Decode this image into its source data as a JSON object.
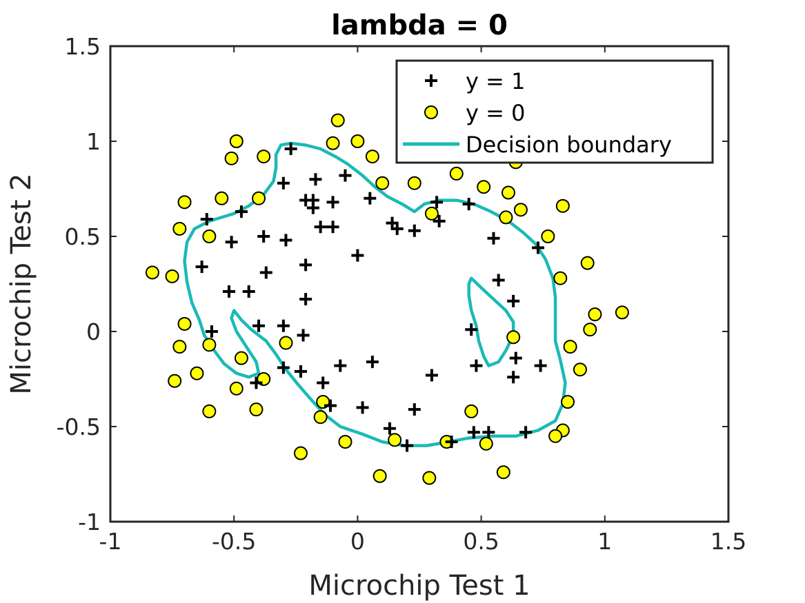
{
  "chart_data": {
    "type": "scatter",
    "title": "lambda = 0",
    "xlabel": "Microchip Test 1",
    "ylabel": "Microchip Test 2",
    "xlim": [
      -1,
      1.5
    ],
    "ylim": [
      -1,
      1.5
    ],
    "xticks": [
      -1,
      -0.5,
      0,
      0.5,
      1,
      1.5
    ],
    "xtick_labels": [
      "-1",
      "-0.5",
      "0",
      "0.5",
      "1",
      "1.5"
    ],
    "yticks": [
      -1,
      -0.5,
      0,
      0.5,
      1,
      1.5
    ],
    "ytick_labels": [
      "-1",
      "-0.5",
      "0",
      "0.5",
      "1",
      "1.5"
    ],
    "grid": false,
    "legend_position": "top-right",
    "colors": {
      "positive": "#000000",
      "negative_fill": "#ffff00",
      "boundary": "#1abab6"
    },
    "series": [
      {
        "name": "y = 1",
        "marker": "plus",
        "points": [
          [
            -0.27,
            0.96
          ],
          [
            -0.3,
            0.78
          ],
          [
            -0.17,
            0.8
          ],
          [
            -0.05,
            0.82
          ],
          [
            -0.21,
            0.69
          ],
          [
            -0.18,
            0.69
          ],
          [
            -0.18,
            0.65
          ],
          [
            -0.1,
            0.68
          ],
          [
            0.05,
            0.7
          ],
          [
            -0.15,
            0.55
          ],
          [
            -0.1,
            0.55
          ],
          [
            -0.61,
            0.59
          ],
          [
            -0.47,
            0.63
          ],
          [
            -0.51,
            0.47
          ],
          [
            -0.38,
            0.5
          ],
          [
            -0.29,
            0.48
          ],
          [
            -0.63,
            0.34
          ],
          [
            -0.37,
            0.31
          ],
          [
            -0.21,
            0.35
          ],
          [
            0.0,
            0.4
          ],
          [
            -0.52,
            0.21
          ],
          [
            -0.44,
            0.21
          ],
          [
            -0.21,
            0.17
          ],
          [
            -0.59,
            0.0
          ],
          [
            -0.4,
            0.03
          ],
          [
            -0.3,
            0.03
          ],
          [
            -0.22,
            -0.02
          ],
          [
            0.14,
            0.57
          ],
          [
            0.16,
            0.54
          ],
          [
            0.23,
            0.53
          ],
          [
            0.32,
            0.68
          ],
          [
            0.33,
            0.58
          ],
          [
            0.45,
            0.67
          ],
          [
            0.55,
            0.49
          ],
          [
            0.73,
            0.44
          ],
          [
            0.57,
            0.27
          ],
          [
            0.63,
            0.16
          ],
          [
            0.46,
            0.01
          ],
          [
            0.48,
            -0.18
          ],
          [
            0.64,
            -0.14
          ],
          [
            0.63,
            -0.24
          ],
          [
            0.74,
            -0.18
          ],
          [
            0.3,
            -0.23
          ],
          [
            0.23,
            -0.41
          ],
          [
            0.06,
            -0.16
          ],
          [
            -0.07,
            -0.18
          ],
          [
            -0.3,
            -0.19
          ],
          [
            -0.23,
            -0.21
          ],
          [
            -0.14,
            -0.27
          ],
          [
            -0.41,
            -0.27
          ],
          [
            -0.11,
            -0.39
          ],
          [
            0.02,
            -0.4
          ],
          [
            0.13,
            -0.51
          ],
          [
            0.2,
            -0.6
          ],
          [
            0.38,
            -0.58
          ],
          [
            0.47,
            -0.53
          ],
          [
            0.53,
            -0.53
          ],
          [
            0.68,
            -0.53
          ]
        ]
      },
      {
        "name": "y = 0",
        "marker": "circle",
        "points": [
          [
            -0.49,
            1.0
          ],
          [
            -0.51,
            0.91
          ],
          [
            -0.38,
            0.92
          ],
          [
            -0.1,
            0.99
          ],
          [
            0.0,
            1.0
          ],
          [
            -0.08,
            1.11
          ],
          [
            0.06,
            0.92
          ],
          [
            0.1,
            0.78
          ],
          [
            0.23,
            0.78
          ],
          [
            0.4,
            0.83
          ],
          [
            0.51,
            0.76
          ],
          [
            0.61,
            0.73
          ],
          [
            0.64,
            0.89
          ],
          [
            0.83,
            0.66
          ],
          [
            0.66,
            0.64
          ],
          [
            0.6,
            0.6
          ],
          [
            0.3,
            0.62
          ],
          [
            0.77,
            0.5
          ],
          [
            0.82,
            0.28
          ],
          [
            0.93,
            0.36
          ],
          [
            0.96,
            0.09
          ],
          [
            0.94,
            0.01
          ],
          [
            1.07,
            0.1
          ],
          [
            0.63,
            -0.03
          ],
          [
            0.86,
            -0.08
          ],
          [
            0.9,
            -0.2
          ],
          [
            0.85,
            -0.37
          ],
          [
            0.83,
            -0.52
          ],
          [
            0.8,
            -0.55
          ],
          [
            0.46,
            -0.42
          ],
          [
            0.59,
            -0.74
          ],
          [
            0.52,
            -0.59
          ],
          [
            0.36,
            -0.58
          ],
          [
            0.29,
            -0.77
          ],
          [
            0.15,
            -0.57
          ],
          [
            0.09,
            -0.76
          ],
          [
            -0.05,
            -0.58
          ],
          [
            -0.15,
            -0.45
          ],
          [
            -0.14,
            -0.37
          ],
          [
            -0.23,
            -0.64
          ],
          [
            -0.29,
            -0.06
          ],
          [
            -0.38,
            -0.25
          ],
          [
            -0.41,
            -0.41
          ],
          [
            -0.47,
            -0.14
          ],
          [
            -0.49,
            -0.3
          ],
          [
            -0.6,
            -0.42
          ],
          [
            -0.6,
            -0.07
          ],
          [
            -0.65,
            -0.22
          ],
          [
            -0.74,
            -0.26
          ],
          [
            -0.72,
            -0.08
          ],
          [
            -0.7,
            0.04
          ],
          [
            -0.75,
            0.29
          ],
          [
            -0.83,
            0.31
          ],
          [
            -0.6,
            0.5
          ],
          [
            -0.72,
            0.54
          ],
          [
            -0.7,
            0.68
          ],
          [
            -0.55,
            0.7
          ],
          [
            -0.4,
            0.7
          ]
        ]
      },
      {
        "name": "Decision boundary",
        "marker": "line",
        "curves": [
          [
            [
              -0.6,
              0.58
            ],
            [
              -0.5,
              0.62
            ],
            [
              -0.44,
              0.66
            ],
            [
              -0.38,
              0.72
            ],
            [
              -0.34,
              0.79
            ],
            [
              -0.33,
              0.86
            ],
            [
              -0.33,
              0.93
            ],
            [
              -0.31,
              0.98
            ],
            [
              -0.27,
              0.99
            ],
            [
              -0.21,
              0.98
            ],
            [
              -0.15,
              0.96
            ],
            [
              -0.09,
              0.92
            ],
            [
              -0.04,
              0.88
            ],
            [
              0.02,
              0.82
            ],
            [
              0.07,
              0.76
            ],
            [
              0.12,
              0.71
            ],
            [
              0.18,
              0.67
            ],
            [
              0.23,
              0.63
            ],
            [
              0.27,
              0.67
            ],
            [
              0.33,
              0.69
            ],
            [
              0.4,
              0.69
            ],
            [
              0.47,
              0.67
            ],
            [
              0.54,
              0.63
            ],
            [
              0.61,
              0.58
            ],
            [
              0.67,
              0.52
            ],
            [
              0.72,
              0.46
            ],
            [
              0.76,
              0.38
            ],
            [
              0.79,
              0.28
            ],
            [
              0.8,
              0.18
            ],
            [
              0.8,
              0.06
            ],
            [
              0.8,
              -0.05
            ],
            [
              0.82,
              -0.15
            ],
            [
              0.84,
              -0.27
            ],
            [
              0.83,
              -0.38
            ],
            [
              0.8,
              -0.47
            ],
            [
              0.73,
              -0.52
            ],
            [
              0.64,
              -0.55
            ],
            [
              0.55,
              -0.55
            ],
            [
              0.45,
              -0.56
            ],
            [
              0.37,
              -0.58
            ],
            [
              0.28,
              -0.6
            ],
            [
              0.19,
              -0.6
            ],
            [
              0.1,
              -0.58
            ],
            [
              0.02,
              -0.54
            ],
            [
              -0.07,
              -0.5
            ],
            [
              -0.13,
              -0.44
            ],
            [
              -0.18,
              -0.37
            ],
            [
              -0.24,
              -0.28
            ],
            [
              -0.29,
              -0.2
            ],
            [
              -0.33,
              -0.12
            ],
            [
              -0.37,
              -0.05
            ],
            [
              -0.43,
              0.01
            ],
            [
              -0.47,
              0.06
            ],
            [
              -0.5,
              0.11
            ],
            [
              -0.51,
              0.07
            ],
            [
              -0.49,
              0.0
            ],
            [
              -0.45,
              -0.08
            ],
            [
              -0.41,
              -0.16
            ],
            [
              -0.4,
              -0.22
            ],
            [
              -0.44,
              -0.24
            ],
            [
              -0.49,
              -0.22
            ],
            [
              -0.54,
              -0.17
            ],
            [
              -0.58,
              -0.1
            ],
            [
              -0.62,
              -0.02
            ],
            [
              -0.64,
              0.06
            ],
            [
              -0.67,
              0.15
            ],
            [
              -0.69,
              0.26
            ],
            [
              -0.7,
              0.37
            ],
            [
              -0.69,
              0.47
            ],
            [
              -0.66,
              0.54
            ],
            [
              -0.6,
              0.58
            ]
          ],
          [
            [
              0.46,
              0.28
            ],
            [
              0.5,
              0.23
            ],
            [
              0.55,
              0.17
            ],
            [
              0.6,
              0.11
            ],
            [
              0.63,
              0.05
            ],
            [
              0.63,
              -0.02
            ],
            [
              0.6,
              -0.1
            ],
            [
              0.57,
              -0.16
            ],
            [
              0.53,
              -0.18
            ],
            [
              0.51,
              -0.13
            ],
            [
              0.49,
              -0.05
            ],
            [
              0.48,
              0.03
            ],
            [
              0.46,
              0.11
            ],
            [
              0.45,
              0.19
            ],
            [
              0.45,
              0.25
            ],
            [
              0.46,
              0.28
            ]
          ]
        ]
      }
    ]
  }
}
